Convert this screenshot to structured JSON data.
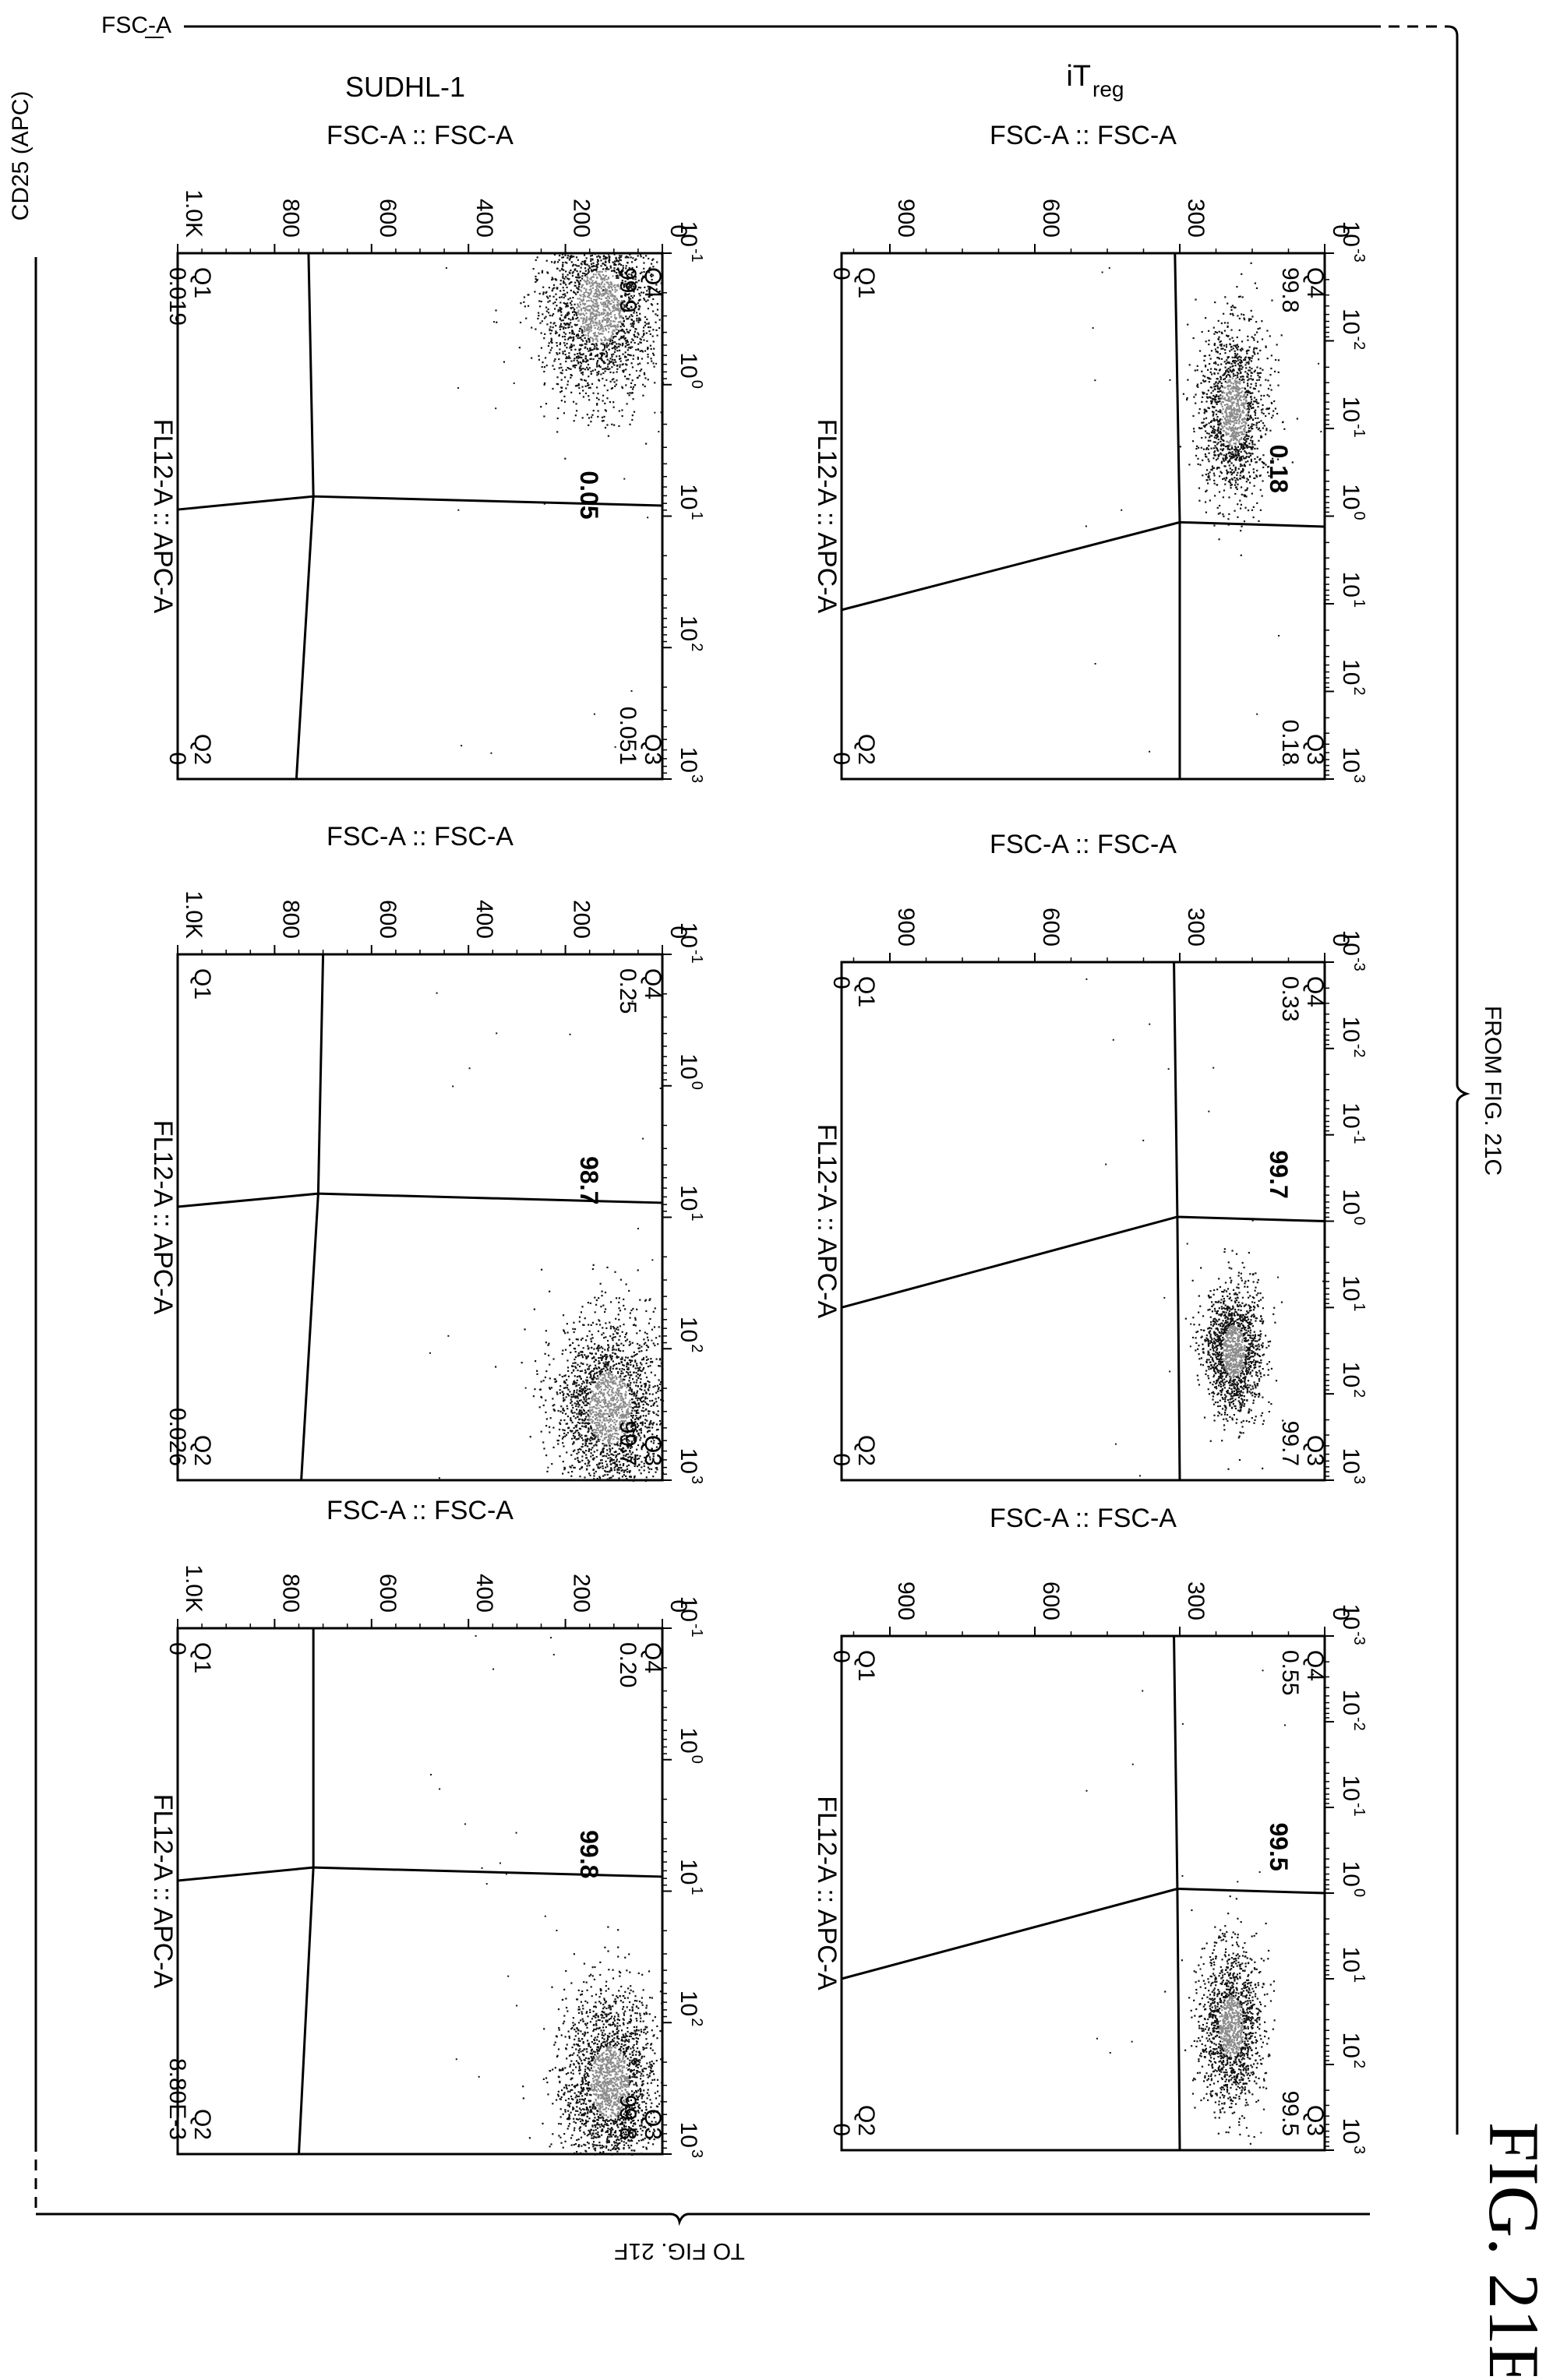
{
  "labels": {
    "top_axis": "FSC-A",
    "left_axis": "CD25 (APC)",
    "from_fig": "FROM FIG. 21C",
    "to_fig": "TO FIG. 21F",
    "fig_label": "FIG. 21E",
    "row_label_top": "iT",
    "row_label_top_sub": "reg",
    "row_label_bottom": "SUDHL-1"
  },
  "chart_data": [
    {
      "type": "scatter",
      "id": "treg-1",
      "cell_line": "iTreg",
      "xlabel": "FSC-A :: FSC-A",
      "ylabel": "FL12-A :: APC-A",
      "xlim": [
        0,
        1000
      ],
      "xticks": [
        "0",
        "300",
        "600",
        "900"
      ],
      "ylim": [
        -3,
        3
      ],
      "yscale": "log",
      "yticks": [
        "-3",
        "-2",
        "-1",
        "0",
        "1",
        "2",
        "3"
      ],
      "quadrants": [
        {
          "name": "Q1",
          "value": "0"
        },
        {
          "name": "Q2",
          "value": "0"
        },
        {
          "name": "Q3",
          "value": "0.18"
        },
        {
          "name": "Q4",
          "value": "99.8"
        }
      ],
      "gate_value": "0.18"
    },
    {
      "type": "scatter",
      "id": "treg-2",
      "cell_line": "iTreg",
      "xlabel": "FSC-A :: FSC-A",
      "ylabel": "FL12-A :: APC-A",
      "xlim": [
        0,
        1000
      ],
      "xticks": [
        "0",
        "300",
        "600",
        "900"
      ],
      "ylim": [
        -3,
        3
      ],
      "yscale": "log",
      "yticks": [
        "-3",
        "-2",
        "-1",
        "0",
        "1",
        "2",
        "3"
      ],
      "quadrants": [
        {
          "name": "Q1",
          "value": "0"
        },
        {
          "name": "Q2",
          "value": "0"
        },
        {
          "name": "Q3",
          "value": "99.7"
        },
        {
          "name": "Q4",
          "value": "0.33"
        }
      ],
      "gate_value": "99.7"
    },
    {
      "type": "scatter",
      "id": "treg-3",
      "cell_line": "iTreg",
      "xlabel": "FSC-A :: FSC-A",
      "ylabel": "FL12-A :: APC-A",
      "xlim": [
        0,
        1000
      ],
      "xticks": [
        "0",
        "300",
        "600",
        "900"
      ],
      "ylim": [
        -3,
        3
      ],
      "yscale": "log",
      "yticks": [
        "-3",
        "-2",
        "-1",
        "0",
        "1",
        "2",
        "3"
      ],
      "quadrants": [
        {
          "name": "Q1",
          "value": "0"
        },
        {
          "name": "Q2",
          "value": "0"
        },
        {
          "name": "Q3",
          "value": "99.5"
        },
        {
          "name": "Q4",
          "value": "0.55"
        }
      ],
      "gate_value": "99.5"
    },
    {
      "type": "scatter",
      "id": "sudhl-1",
      "cell_line": "SUDHL-1",
      "xlabel": "FSC-A :: FSC-A",
      "ylabel": "FL12-A :: APC-A",
      "xlim": [
        0,
        1000
      ],
      "xticks": [
        "0",
        "200",
        "400",
        "600",
        "800",
        "1.0K"
      ],
      "ylim": [
        -1,
        3
      ],
      "yscale": "log",
      "yticks": [
        "-1",
        "0",
        "1",
        "2",
        "3"
      ],
      "quadrants": [
        {
          "name": "Q1",
          "value": "0.019"
        },
        {
          "name": "Q2",
          "value": "0"
        },
        {
          "name": "Q3",
          "value": "0.051"
        },
        {
          "name": "Q4",
          "value": "99.9"
        }
      ],
      "gate_value": "0.05"
    },
    {
      "type": "scatter",
      "id": "sudhl-2",
      "cell_line": "SUDHL-1",
      "xlabel": "FSC-A :: FSC-A",
      "ylabel": "FL12-A :: APC-A",
      "xlim": [
        0,
        1000
      ],
      "xticks": [
        "0",
        "200",
        "400",
        "600",
        "800",
        "1.0K"
      ],
      "ylim": [
        -1,
        3
      ],
      "yscale": "log",
      "yticks": [
        "-1",
        "0",
        "1",
        "2",
        "3"
      ],
      "quadrants": [
        {
          "name": "Q1",
          "value": ""
        },
        {
          "name": "Q2",
          "value": "0.026"
        },
        {
          "name": "Q3",
          "value": "99.7"
        },
        {
          "name": "Q4",
          "value": "0.25"
        }
      ],
      "gate_value": "98.7"
    },
    {
      "type": "scatter",
      "id": "sudhl-3",
      "cell_line": "SUDHL-1",
      "xlabel": "FSC-A :: FSC-A",
      "ylabel": "FL12-A :: APC-A",
      "xlim": [
        0,
        1000
      ],
      "xticks": [
        "0",
        "200",
        "400",
        "600",
        "800",
        "1.0K"
      ],
      "ylim": [
        -1,
        3
      ],
      "yscale": "log",
      "yticks": [
        "-1",
        "0",
        "1",
        "2",
        "3"
      ],
      "quadrants": [
        {
          "name": "Q1",
          "value": "0"
        },
        {
          "name": "Q2",
          "value": "8.80E-3"
        },
        {
          "name": "Q3",
          "value": "99.8"
        },
        {
          "name": "Q4",
          "value": "0.20"
        }
      ],
      "gate_value": "99.8"
    }
  ]
}
